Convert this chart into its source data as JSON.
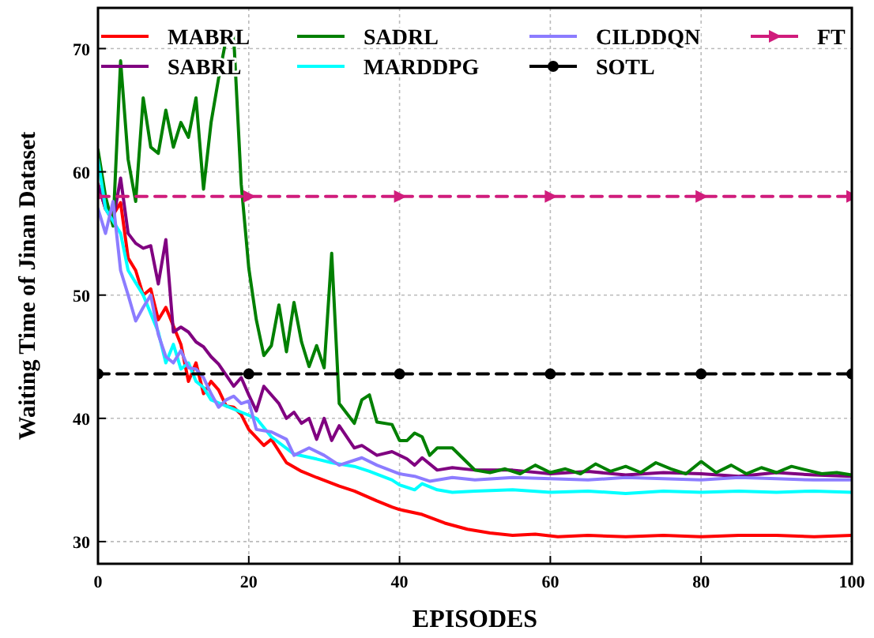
{
  "chart_data": {
    "type": "line",
    "xlabel": "EPISODES",
    "ylabel": "Waiting Time of Jinan Dataset",
    "xlim": [
      0,
      100
    ],
    "xticks": [
      0,
      20,
      40,
      60,
      80,
      100
    ],
    "ylim": [
      28.2,
      73.3
    ],
    "yticks": [
      30,
      40,
      50,
      60,
      70
    ],
    "grid": true,
    "legend": "top",
    "marker": "none",
    "line_style": "solid",
    "series": [
      {
        "name": "MABRL",
        "color": "#ff0000",
        "x": [
          0,
          1,
          2,
          3,
          4,
          5,
          6,
          7,
          8,
          9,
          10,
          11,
          12,
          13,
          14,
          15,
          16,
          17,
          18,
          19,
          20,
          22,
          23,
          25,
          27,
          29,
          32,
          34,
          37,
          39,
          40,
          43,
          46,
          49,
          52,
          55,
          58,
          61,
          65,
          70,
          75,
          80,
          85,
          90,
          95,
          100
        ],
        "values": [
          59,
          57,
          56.5,
          57.5,
          53,
          52,
          50,
          50.5,
          48,
          49,
          47.5,
          46,
          43,
          44.5,
          42,
          43,
          42.3,
          41,
          40.9,
          40.3,
          39.1,
          37.8,
          38.3,
          36.4,
          35.7,
          35.2,
          34.5,
          34.1,
          33.3,
          32.8,
          32.6,
          32.2,
          31.5,
          31,
          30.7,
          30.5,
          30.6,
          30.4,
          30.5,
          30.4,
          30.5,
          30.4,
          30.5,
          30.5,
          30.4,
          30.5
        ]
      },
      {
        "name": "SABRL",
        "color": "#800080",
        "x": [
          0,
          1,
          2,
          3,
          4,
          5,
          6,
          7,
          8,
          9,
          10,
          11,
          12,
          13,
          14,
          15,
          16,
          17,
          18,
          19,
          20,
          21,
          22,
          24,
          25,
          26,
          27,
          28,
          29,
          30,
          31,
          32,
          34,
          35,
          37,
          39,
          41,
          42,
          43,
          45,
          47,
          50,
          55,
          60,
          65,
          70,
          75,
          80,
          85,
          90,
          95,
          100
        ],
        "values": [
          59,
          57,
          56,
          59.5,
          55,
          54.2,
          53.8,
          54,
          50.9,
          54.5,
          47,
          47.4,
          47,
          46.2,
          45.8,
          45,
          44.4,
          43.5,
          42.6,
          43.3,
          41.9,
          40.6,
          42.6,
          41.2,
          40,
          40.5,
          39.6,
          40,
          38.3,
          40,
          38.2,
          39.4,
          37.6,
          37.8,
          37,
          37.3,
          36.7,
          36.2,
          36.8,
          35.8,
          36,
          35.8,
          35.8,
          35.5,
          35.7,
          35.4,
          35.6,
          35.5,
          35.3,
          35.6,
          35.4,
          35.3
        ]
      },
      {
        "name": "SADRL",
        "color": "#008000",
        "x": [
          0,
          1,
          2,
          3,
          4,
          5,
          6,
          7,
          8,
          9,
          10,
          11,
          12,
          13,
          14,
          15,
          16,
          17,
          18,
          19,
          20,
          21,
          22,
          23,
          24,
          25,
          26,
          27,
          28,
          29,
          30,
          31,
          32,
          33,
          34,
          35,
          36,
          37,
          39,
          40,
          41,
          42,
          43,
          44,
          45,
          47,
          49,
          50,
          52,
          54,
          56,
          58,
          60,
          62,
          64,
          66,
          68,
          70,
          72,
          74,
          76,
          78,
          80,
          82,
          84,
          86,
          88,
          90,
          92,
          94,
          96,
          98,
          100
        ],
        "values": [
          61.8,
          58,
          55.6,
          69,
          61,
          57.6,
          66,
          62,
          61.5,
          65,
          62,
          64,
          62.8,
          66,
          58.6,
          64,
          67.6,
          70.8,
          71,
          59,
          52.2,
          48,
          45.1,
          45.9,
          49.2,
          45.4,
          49.4,
          46.2,
          44.2,
          45.9,
          44.1,
          53.4,
          41.2,
          40.4,
          39.6,
          41.5,
          41.9,
          39.7,
          39.5,
          38.2,
          38.2,
          38.8,
          38.5,
          37,
          37.6,
          37.6,
          36.4,
          35.8,
          35.6,
          35.9,
          35.5,
          36.2,
          35.6,
          35.9,
          35.5,
          36.3,
          35.7,
          36.1,
          35.6,
          36.4,
          35.9,
          35.5,
          36.5,
          35.6,
          36.2,
          35.5,
          36,
          35.6,
          36.1,
          35.8,
          35.5,
          35.6,
          35.4
        ]
      },
      {
        "name": "MARDDPG",
        "color": "#00ffff",
        "x": [
          0,
          1,
          2,
          3,
          4,
          5,
          6,
          7,
          8,
          9,
          10,
          11,
          12,
          13,
          14,
          15,
          17,
          19,
          21,
          23,
          26,
          29,
          31,
          34,
          36,
          39,
          40,
          42,
          43,
          45,
          47,
          50,
          55,
          60,
          65,
          70,
          75,
          80,
          85,
          90,
          95,
          100
        ],
        "values": [
          61,
          57,
          56,
          55,
          52,
          51,
          50,
          48.5,
          47,
          44.5,
          46,
          44,
          44.5,
          43,
          42.5,
          41.5,
          41,
          40.5,
          40,
          38.5,
          37.1,
          36.7,
          36.4,
          36.1,
          35.7,
          35,
          34.6,
          34.2,
          34.7,
          34.2,
          34,
          34.1,
          34.2,
          34,
          34.1,
          33.9,
          34.1,
          34,
          34.1,
          34,
          34.1,
          34
        ]
      },
      {
        "name": "CILDDQN",
        "color": "#8c7cff",
        "x": [
          0,
          1,
          2,
          3,
          4,
          5,
          6,
          7,
          8,
          9,
          10,
          11,
          12,
          13,
          14,
          15,
          16,
          17,
          18,
          19,
          20,
          21,
          23,
          25,
          26,
          28,
          30,
          32,
          35,
          37,
          40,
          42,
          44,
          47,
          50,
          55,
          60,
          65,
          70,
          75,
          80,
          85,
          90,
          95,
          100
        ],
        "values": [
          57,
          55,
          57.6,
          52,
          50,
          47.9,
          49,
          50,
          46.8,
          45,
          44.5,
          45.5,
          44.1,
          44,
          43.3,
          42,
          40.9,
          41.5,
          41.8,
          41.2,
          41.4,
          39.1,
          38.9,
          38.3,
          37,
          37.6,
          37,
          36.2,
          36.8,
          36.2,
          35.5,
          35.3,
          34.9,
          35.2,
          35,
          35.2,
          35.1,
          35,
          35.2,
          35.1,
          35,
          35.2,
          35.1,
          35,
          35
        ]
      },
      {
        "name": "SOTL",
        "color": "#000000",
        "marker": "circle",
        "line_style": "dashed",
        "x": [
          0,
          20,
          40,
          60,
          80,
          100
        ],
        "values": [
          43.6,
          43.6,
          43.6,
          43.6,
          43.6,
          43.6
        ]
      },
      {
        "name": "FT",
        "color": "#d01c7c",
        "marker": "triangle",
        "line_style": "dashed",
        "x": [
          0,
          20,
          40,
          60,
          80,
          100
        ],
        "values": [
          58,
          58,
          58,
          58,
          58,
          58
        ]
      }
    ]
  }
}
